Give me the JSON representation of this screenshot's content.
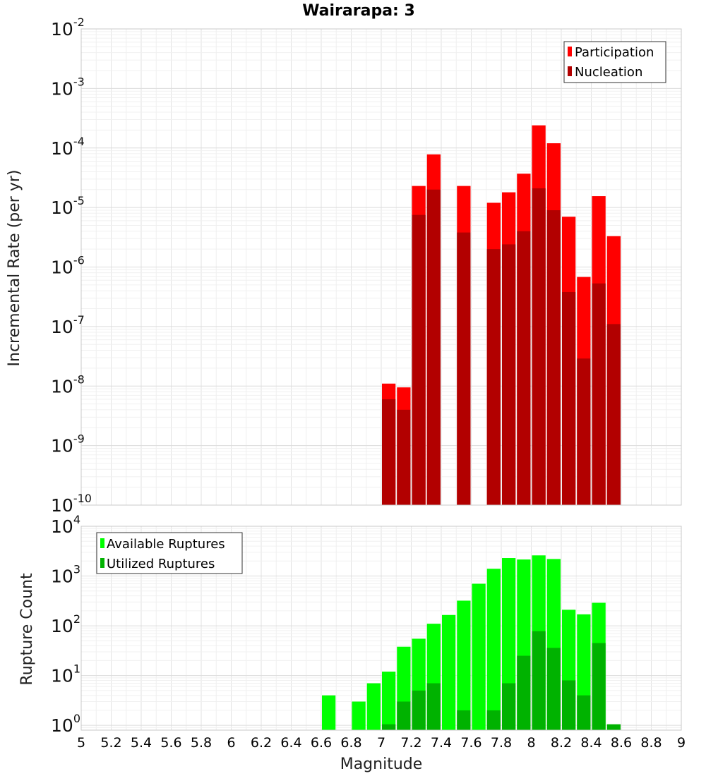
{
  "chart_data": [
    {
      "type": "bar",
      "title": "Wairarapa: 3",
      "ylabel": "Incremental Rate (per yr)",
      "xlabel": "",
      "yscale": "log",
      "ylim": [
        1e-10,
        0.01
      ],
      "xlim": [
        5,
        9
      ],
      "grid": true,
      "legend_placement": "top-right",
      "bin_width": 0.1,
      "x": [
        7.05,
        7.15,
        7.25,
        7.35,
        7.55,
        7.75,
        7.85,
        7.95,
        8.05,
        8.15,
        8.25,
        8.35,
        8.45,
        8.55
      ],
      "series": [
        {
          "name": "Participation",
          "color": "#ff0000",
          "values": [
            1.1e-08,
            9.5e-09,
            2.3e-05,
            7.8e-05,
            2.3e-05,
            1.2e-05,
            1.8e-05,
            3.7e-05,
            0.00024,
            0.00012,
            7e-06,
            6.8e-07,
            1.55e-05,
            3.3e-06
          ]
        },
        {
          "name": "Nucleation",
          "color": "#b20000",
          "values": [
            6e-09,
            4e-09,
            7.5e-06,
            2e-05,
            3.8e-06,
            2e-06,
            2.4e-06,
            4e-06,
            2.1e-05,
            9e-06,
            3.8e-07,
            2.9e-08,
            5.3e-07,
            1.1e-07
          ]
        }
      ]
    },
    {
      "type": "bar",
      "title": "",
      "ylabel": "Rupture Count",
      "xlabel": "Magnitude",
      "yscale": "log",
      "ylim": [
        0.8,
        10000
      ],
      "xlim": [
        5,
        9
      ],
      "grid": true,
      "legend_placement": "top-left",
      "bin_width": 0.1,
      "x_ticks": [
        "5",
        "5.2",
        "5.4",
        "5.6",
        "5.8",
        "6",
        "6.2",
        "6.4",
        "6.6",
        "6.8",
        "7",
        "7.2",
        "7.4",
        "7.6",
        "7.8",
        "8",
        "8.2",
        "8.4",
        "8.6",
        "8.8",
        "9"
      ],
      "x": [
        6.65,
        6.85,
        6.95,
        7.05,
        7.15,
        7.25,
        7.35,
        7.45,
        7.55,
        7.65,
        7.75,
        7.85,
        7.95,
        8.05,
        8.15,
        8.25,
        8.35,
        8.45,
        8.55
      ],
      "series": [
        {
          "name": "Available Ruptures",
          "color": "#00ff00",
          "values": [
            4,
            3,
            7,
            12,
            38,
            55,
            110,
            165,
            320,
            700,
            1400,
            2300,
            2150,
            2600,
            2200,
            210,
            170,
            290,
            0
          ]
        },
        {
          "name": "Utilized Ruptures",
          "color": "#00b200",
          "values": [
            0,
            0,
            0,
            1.05,
            3,
            5,
            7,
            0,
            2,
            0,
            2,
            7,
            25,
            78,
            36,
            8,
            4,
            45,
            1.05
          ]
        }
      ]
    }
  ]
}
